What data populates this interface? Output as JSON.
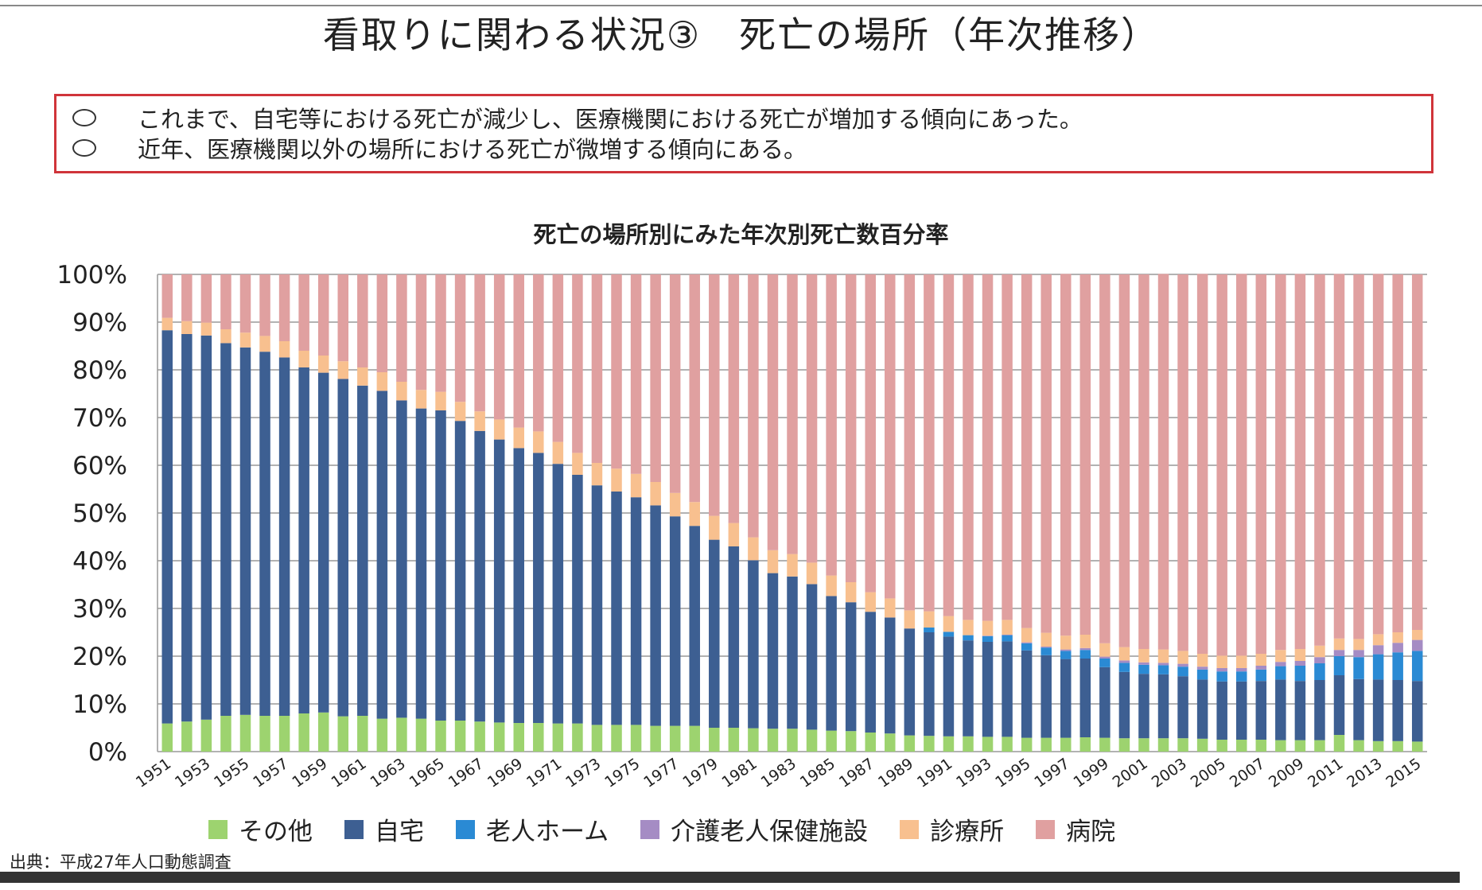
{
  "title": "看取りに関わる状況③　死亡の場所（年次推移）",
  "summary": [
    "これまで、自宅等における死亡が減少し、医療機関における死亡が増加する傾向にあった。",
    "近年、医療機関以外の場所における死亡が微増する傾向にある。"
  ],
  "source": "出典：平成27年人口動態調査",
  "chart_data": {
    "type": "bar",
    "stacked": true,
    "title": "死亡の場所別にみた年次別死亡数百分率",
    "ylim": [
      0,
      100
    ],
    "yticks": [
      "0%",
      "10%",
      "20%",
      "30%",
      "40%",
      "50%",
      "60%",
      "70%",
      "80%",
      "90%",
      "100%"
    ],
    "grid": true,
    "legend_position": "bottom",
    "categories": [
      1951,
      1952,
      1953,
      1954,
      1955,
      1956,
      1957,
      1958,
      1959,
      1960,
      1961,
      1962,
      1963,
      1964,
      1965,
      1966,
      1967,
      1968,
      1969,
      1970,
      1971,
      1972,
      1973,
      1974,
      1975,
      1976,
      1977,
      1978,
      1979,
      1980,
      1981,
      1982,
      1983,
      1984,
      1985,
      1986,
      1987,
      1988,
      1989,
      1990,
      1991,
      1992,
      1993,
      1994,
      1995,
      1996,
      1997,
      1998,
      1999,
      2000,
      2001,
      2002,
      2003,
      2004,
      2005,
      2006,
      2007,
      2008,
      2009,
      2010,
      2011,
      2012,
      2013,
      2014,
      2015
    ],
    "xtick_labels": [
      "1951",
      "1953",
      "1955",
      "1957",
      "1959",
      "1961",
      "1963",
      "1965",
      "1967",
      "1969",
      "1971",
      "1973",
      "1975",
      "1977",
      "1979",
      "1981",
      "1983",
      "1985",
      "1987",
      "1989",
      "1991",
      "1993",
      "1995",
      "1997",
      "1999",
      "2001",
      "2003",
      "2005",
      "2007",
      "2009",
      "2011",
      "2013",
      "2015"
    ],
    "series": [
      {
        "name": "その他",
        "color": "#9dd36f",
        "values": [
          5.9,
          6.3,
          6.7,
          7.5,
          7.7,
          7.5,
          7.5,
          8.0,
          8.2,
          7.4,
          7.5,
          6.9,
          7.1,
          6.9,
          6.5,
          6.5,
          6.3,
          6.1,
          6.0,
          6.0,
          5.9,
          5.9,
          5.6,
          5.6,
          5.6,
          5.4,
          5.4,
          5.4,
          5.0,
          5.0,
          4.9,
          4.8,
          4.8,
          4.6,
          4.4,
          4.3,
          4.0,
          3.8,
          3.4,
          3.3,
          3.2,
          3.2,
          3.1,
          3.1,
          2.9,
          2.9,
          2.9,
          3.0,
          2.9,
          2.8,
          2.8,
          2.8,
          2.8,
          2.7,
          2.5,
          2.5,
          2.5,
          2.4,
          2.4,
          2.4,
          3.5,
          2.4,
          2.2,
          2.2,
          2.1
        ]
      },
      {
        "name": "自宅",
        "color": "#3d5f92",
        "values": [
          82.4,
          81.2,
          80.5,
          78.1,
          77.0,
          76.3,
          75.1,
          72.5,
          71.2,
          70.7,
          69.2,
          68.7,
          66.5,
          65.0,
          65.0,
          62.8,
          60.9,
          59.3,
          57.6,
          56.6,
          54.4,
          52.1,
          50.2,
          48.9,
          47.7,
          46.2,
          43.9,
          41.9,
          39.4,
          38.0,
          35.2,
          32.6,
          31.9,
          30.5,
          28.2,
          27.0,
          25.3,
          24.3,
          22.4,
          21.7,
          20.9,
          20.1,
          19.9,
          20.0,
          18.3,
          17.3,
          16.5,
          16.5,
          14.8,
          13.9,
          13.5,
          13.4,
          13.0,
          12.4,
          12.2,
          12.2,
          12.3,
          12.7,
          12.4,
          12.6,
          12.5,
          12.8,
          12.9,
          12.8,
          12.7
        ]
      },
      {
        "name": "老人ホーム",
        "color": "#2a8ad4",
        "values": [
          0,
          0,
          0,
          0,
          0,
          0,
          0,
          0,
          0,
          0,
          0,
          0,
          0,
          0,
          0,
          0,
          0,
          0,
          0,
          0,
          0,
          0,
          0,
          0,
          0,
          0,
          0,
          0,
          0,
          0,
          0,
          0,
          0,
          0,
          0,
          0,
          0,
          0,
          0,
          1.0,
          1.0,
          1.1,
          1.2,
          1.3,
          1.5,
          1.6,
          1.7,
          1.8,
          1.8,
          1.9,
          1.9,
          1.9,
          2.0,
          2.1,
          2.1,
          2.1,
          2.4,
          2.8,
          3.2,
          3.5,
          4.0,
          4.6,
          5.3,
          5.8,
          6.3
        ]
      },
      {
        "name": "介護老人保健施設",
        "color": "#a58cc4",
        "values": [
          0,
          0,
          0,
          0,
          0,
          0,
          0,
          0,
          0,
          0,
          0,
          0,
          0,
          0,
          0,
          0,
          0,
          0,
          0,
          0,
          0,
          0,
          0,
          0,
          0,
          0,
          0,
          0,
          0,
          0,
          0,
          0,
          0,
          0,
          0,
          0,
          0,
          0,
          0,
          0,
          0,
          0,
          0.1,
          0.1,
          0.2,
          0.2,
          0.3,
          0.4,
          0.4,
          0.5,
          0.5,
          0.5,
          0.6,
          0.6,
          0.7,
          0.7,
          0.8,
          0.9,
          1.0,
          1.3,
          1.3,
          1.5,
          1.9,
          2.0,
          2.3
        ]
      },
      {
        "name": "診療所",
        "color": "#f8c08f",
        "values": [
          2.6,
          2.7,
          2.7,
          2.9,
          3.1,
          3.3,
          3.4,
          3.5,
          3.6,
          3.7,
          3.8,
          3.9,
          3.9,
          3.9,
          3.9,
          4.0,
          4.1,
          4.2,
          4.3,
          4.5,
          4.6,
          4.6,
          4.7,
          4.8,
          4.9,
          4.9,
          4.9,
          5.0,
          5.0,
          4.9,
          4.8,
          4.8,
          4.7,
          4.5,
          4.3,
          4.2,
          4.1,
          4.0,
          3.8,
          3.4,
          3.3,
          3.2,
          3.1,
          3.1,
          3.0,
          2.9,
          2.9,
          2.8,
          2.8,
          2.8,
          2.8,
          2.8,
          2.7,
          2.7,
          2.6,
          2.6,
          2.5,
          2.5,
          2.5,
          2.4,
          2.4,
          2.3,
          2.3,
          2.2,
          2.1
        ]
      },
      {
        "name": "病院",
        "color": "#e0a0a0",
        "values": [
          9.1,
          9.8,
          10.1,
          11.5,
          12.2,
          12.9,
          14.0,
          16.0,
          17.0,
          18.2,
          19.5,
          20.5,
          22.5,
          24.2,
          24.6,
          26.7,
          28.7,
          30.4,
          32.1,
          32.9,
          35.1,
          37.4,
          39.5,
          40.7,
          41.8,
          43.5,
          45.8,
          47.7,
          50.6,
          52.1,
          55.1,
          57.8,
          58.6,
          60.4,
          63.1,
          64.5,
          66.6,
          67.9,
          70.4,
          70.6,
          71.6,
          72.4,
          72.6,
          72.4,
          74.1,
          75.1,
          75.8,
          75.5,
          77.3,
          78.1,
          78.5,
          78.7,
          78.9,
          79.6,
          79.9,
          80.0,
          79.5,
          78.7,
          78.6,
          77.8,
          76.4,
          76.4,
          75.5,
          75.0,
          74.5
        ]
      }
    ]
  }
}
